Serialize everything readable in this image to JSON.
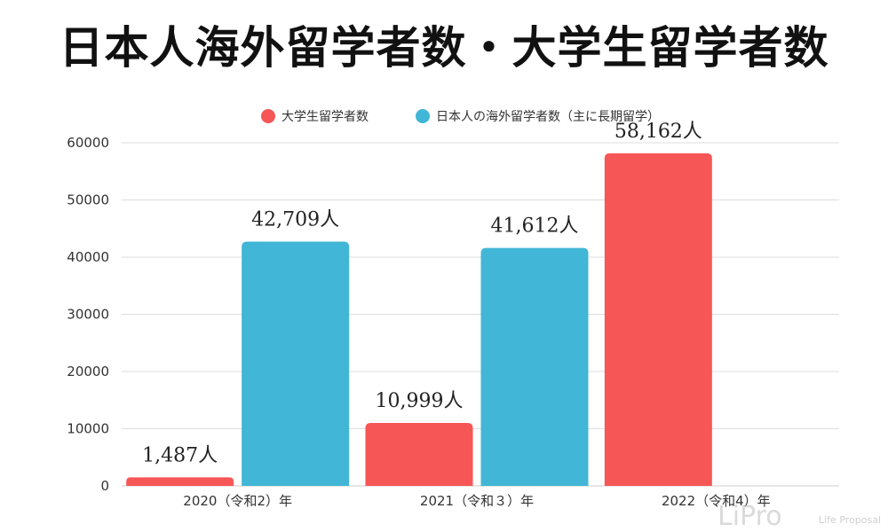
{
  "title": "日本人海外留学者数・大学生留学者数",
  "watermark": {
    "logo": "LiPro",
    "tagline": "Life Proposal"
  },
  "chart_data": {
    "type": "bar",
    "title": "日本人海外留学者数・大学生留学者数",
    "xlabel": "",
    "ylabel": "",
    "categories": [
      "2020（令和2）年",
      "2021（令和３）年",
      "2022（令和4）年"
    ],
    "series": [
      {
        "name": "大学生留学者数",
        "color": "#f75656",
        "values": [
          1487,
          10999,
          58162
        ],
        "labels": [
          "1,487人",
          "10,999人",
          "58,162人"
        ]
      },
      {
        "name": "日本人の海外留学者数（主に長期留学）",
        "color": "#41b6d6",
        "values": [
          42709,
          41612,
          null
        ],
        "labels": [
          "42,709人",
          "41,612人",
          ""
        ]
      }
    ],
    "ylim": [
      0,
      60000
    ],
    "yticks": [
      0,
      10000,
      20000,
      30000,
      40000,
      50000,
      60000
    ],
    "grid": true,
    "legend": "top"
  }
}
